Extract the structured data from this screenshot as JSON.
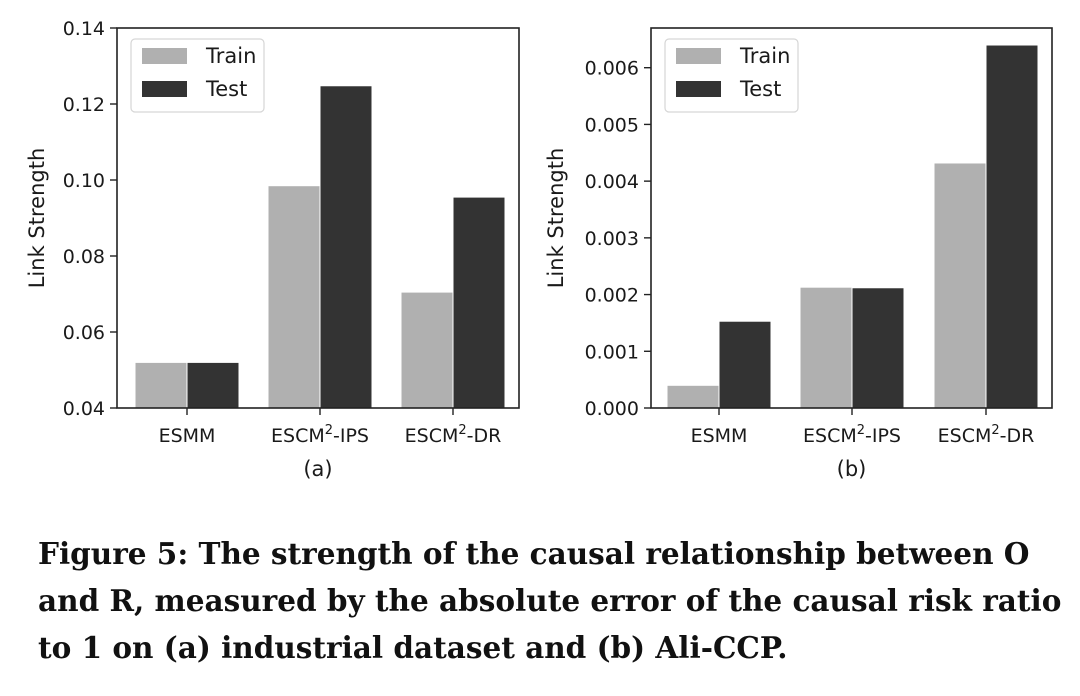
{
  "chart_data": [
    {
      "type": "bar",
      "panel_label": "(a)",
      "categories": [
        {
          "base": "ESMM",
          "sup": "",
          "suffix": ""
        },
        {
          "base": "ESCM",
          "sup": "2",
          "suffix": "-IPS"
        },
        {
          "base": "ESCM",
          "sup": "2",
          "suffix": "-DR"
        }
      ],
      "series": [
        {
          "name": "Train",
          "color": "#b0b0b0",
          "values": [
            0.052,
            0.0985,
            0.0705
          ]
        },
        {
          "name": "Test",
          "color": "#333333",
          "values": [
            0.052,
            0.1248,
            0.0955
          ]
        }
      ],
      "ylabel": "Link Strength",
      "ylim": [
        0.04,
        0.14
      ],
      "yticks": [
        0.04,
        0.06,
        0.08,
        0.1,
        0.12,
        0.14
      ],
      "ytick_labels": [
        "0.04",
        "0.06",
        "0.08",
        "0.10",
        "0.12",
        "0.14"
      ],
      "legend_position": "top-left"
    },
    {
      "type": "bar",
      "panel_label": "(b)",
      "categories": [
        {
          "base": "ESMM",
          "sup": "",
          "suffix": ""
        },
        {
          "base": "ESCM",
          "sup": "2",
          "suffix": "-IPS"
        },
        {
          "base": "ESCM",
          "sup": "2",
          "suffix": "-DR"
        }
      ],
      "series": [
        {
          "name": "Train",
          "color": "#b0b0b0",
          "values": [
            0.0004,
            0.00213,
            0.00432
          ]
        },
        {
          "name": "Test",
          "color": "#333333",
          "values": [
            0.00153,
            0.00212,
            0.0064
          ]
        }
      ],
      "ylabel": "Link Strength",
      "ylim": [
        0.0,
        0.0067
      ],
      "yticks": [
        0.0,
        0.001,
        0.002,
        0.003,
        0.004,
        0.005,
        0.006
      ],
      "ytick_labels": [
        "0.000",
        "0.001",
        "0.002",
        "0.003",
        "0.004",
        "0.005",
        "0.006"
      ],
      "legend_position": "top-left"
    }
  ],
  "caption": {
    "lines": [
      "Figure 5: The strength of the causal relationship between O",
      "and R, measured by the absolute error of the causal risk ratio",
      "to 1 on (a) industrial dataset and (b) Ali-CCP."
    ]
  }
}
